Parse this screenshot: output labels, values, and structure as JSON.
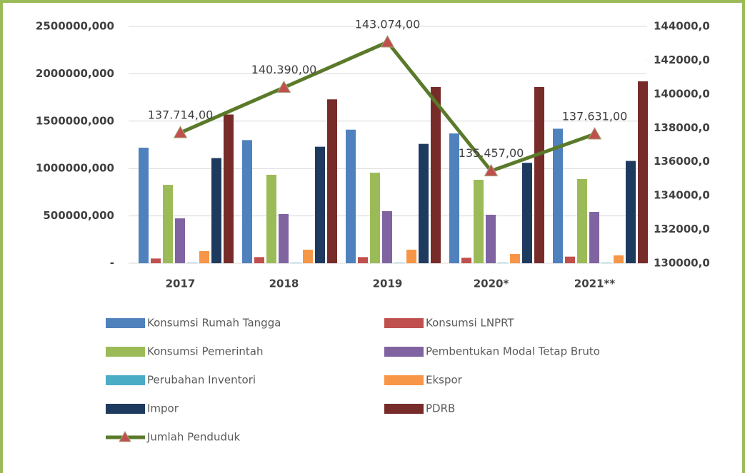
{
  "chart_data": {
    "type": "bar-line",
    "categories": [
      "2017",
      "2018",
      "2019",
      "2020*",
      "2021**"
    ],
    "series": [
      {
        "name": "Konsumsi Rumah Tangga",
        "color": "#4f81bd",
        "values": [
          1220000,
          1300000,
          1410000,
          1370000,
          1420000
        ]
      },
      {
        "name": "Konsumsi LNPRT",
        "color": "#c0504d",
        "values": [
          50000,
          65000,
          65000,
          58000,
          70000
        ]
      },
      {
        "name": "Konsumsi Pemerintah",
        "color": "#9bbb59",
        "values": [
          828000,
          934000,
          956000,
          881000,
          889000
        ]
      },
      {
        "name": "Pembentukan Modal Tetap Bruto",
        "color": "#8064a2",
        "values": [
          474000,
          520000,
          550000,
          512000,
          542000
        ]
      },
      {
        "name": "Perubahan Inventori",
        "color": "#4bacc6",
        "values": [
          5000,
          5000,
          5000,
          5000,
          5000
        ]
      },
      {
        "name": "Ekspor",
        "color": "#f79646",
        "values": [
          128000,
          143000,
          143000,
          98000,
          83000
        ]
      },
      {
        "name": "Impor",
        "color": "#1f3a5f",
        "values": [
          1110000,
          1230000,
          1260000,
          1060000,
          1080000
        ]
      },
      {
        "name": "PDRB",
        "color": "#772c2a",
        "values": [
          1570000,
          1730000,
          1860000,
          1860000,
          1920000
        ]
      },
      {
        "name": "Jumlah Penduduk",
        "color": "#5a7a2a",
        "marker_color": "#c0504d",
        "axis": "y2",
        "values": [
          137714,
          140390,
          143074,
          135457,
          137631
        ],
        "value_labels": [
          "137.714,00",
          "140.390,00",
          "143.074,00",
          "135.457,00",
          "137.631,00"
        ]
      }
    ],
    "ylim": [
      0,
      2500000
    ],
    "yticks": [
      {
        "value": 0,
        "label": "-"
      },
      {
        "value": 500000,
        "label": "500000,000"
      },
      {
        "value": 1000000,
        "label": "1000000,000"
      },
      {
        "value": 1500000,
        "label": "1500000,000"
      },
      {
        "value": 2000000,
        "label": "2000000,000"
      },
      {
        "value": 2500000,
        "label": "2500000,000"
      }
    ],
    "y2lim": [
      130000,
      144000
    ],
    "y2ticks": [
      {
        "value": 130000,
        "label": "130000,0"
      },
      {
        "value": 132000,
        "label": "132000,0"
      },
      {
        "value": 134000,
        "label": "134000,0"
      },
      {
        "value": 136000,
        "label": "136000,0"
      },
      {
        "value": 138000,
        "label": "138000,0"
      },
      {
        "value": 140000,
        "label": "140000,0"
      },
      {
        "value": 142000,
        "label": "142000,0"
      },
      {
        "value": 144000,
        "label": "144000,0"
      }
    ],
    "grid": true,
    "legend": "bottom"
  }
}
